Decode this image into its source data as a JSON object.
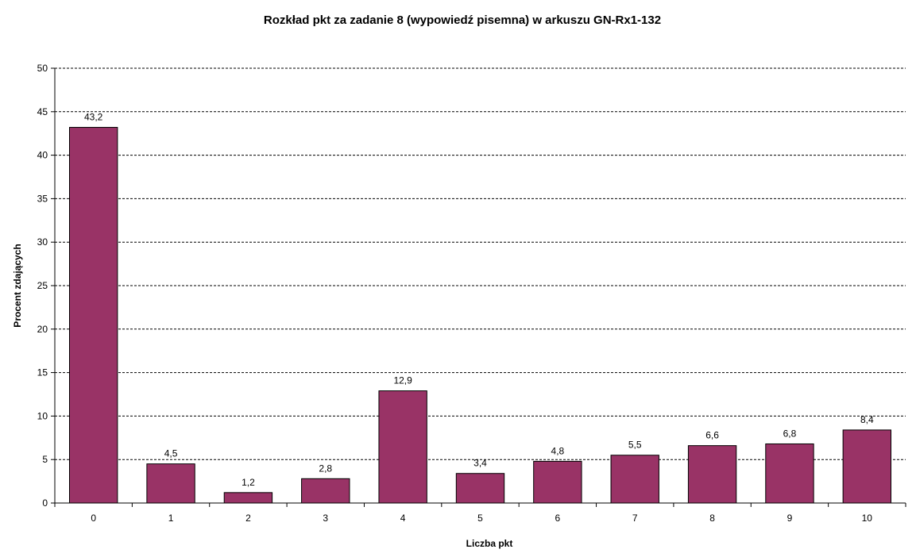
{
  "chart_data": {
    "type": "bar",
    "title": "Rozkład pkt za zadanie 8 (wypowiedź pisemna) w arkuszu GN-Rx1-132",
    "xlabel": "Liczba pkt",
    "ylabel": "Procent zdających",
    "categories": [
      "0",
      "1",
      "2",
      "3",
      "4",
      "5",
      "6",
      "7",
      "8",
      "9",
      "10"
    ],
    "values": [
      43.2,
      4.5,
      1.2,
      2.8,
      12.9,
      3.4,
      4.8,
      5.5,
      6.6,
      6.8,
      8.4
    ],
    "data_labels": [
      "43,2",
      "4,5",
      "1,2",
      "2,8",
      "12,9",
      "3,4",
      "4,8",
      "5,5",
      "6,6",
      "6,8",
      "8,4"
    ],
    "ylim": [
      0,
      50
    ],
    "yticks": [
      0,
      5,
      10,
      15,
      20,
      25,
      30,
      35,
      40,
      45,
      50
    ],
    "grid": "horizontal-dashed",
    "legend": "none",
    "colors": {
      "bar_fill": "#993366",
      "bar_stroke": "#000000",
      "grid": "#000000",
      "axis": "#000000"
    }
  }
}
